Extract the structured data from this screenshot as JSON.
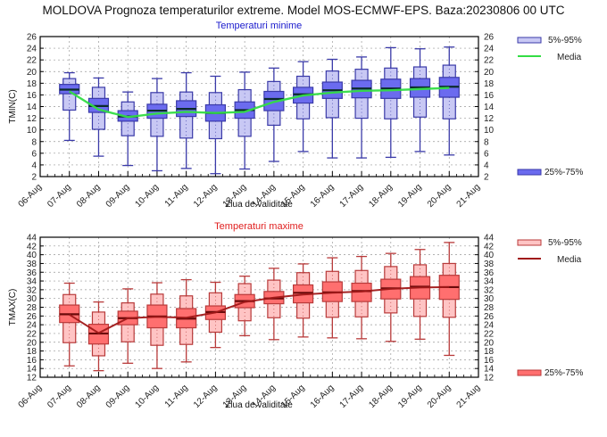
{
  "page": {
    "title": "MOLDOVA  Prognoza temperaturilor extreme.  Model MOS-ECMWF-EPS. Baza:20230806 00 UTC"
  },
  "chart_data": [
    {
      "type": "box",
      "title": "Temperaturi minime",
      "xlabel": "Ziua de validitate",
      "ylabel": "TMIN(C)",
      "ylim": [
        2,
        26
      ],
      "yticks": [
        2,
        4,
        6,
        8,
        10,
        12,
        14,
        16,
        18,
        20,
        22,
        24,
        26
      ],
      "x_tick_labels": [
        "06-Aug",
        "07-Aug",
        "08-Aug",
        "09-Aug",
        "10-Aug",
        "11-Aug",
        "12-Aug",
        "13-Aug",
        "14-Aug",
        "15-Aug",
        "16-Aug",
        "17-Aug",
        "18-Aug",
        "19-Aug",
        "20-Aug",
        "21-Aug"
      ],
      "grid": true,
      "legend_position": "right",
      "colors": {
        "outer_fill": "#c8c8f4",
        "inner_fill": "#6b6bef",
        "edge": "#3a3aa8",
        "median": "#0b2b2b",
        "mean_line": "#33dd44",
        "title": "#1a1acc"
      },
      "legend": [
        {
          "label": "5%-95%",
          "kind": "outer-box"
        },
        {
          "label": "Media",
          "kind": "mean-line"
        },
        {
          "label": "25%-75%",
          "kind": "inner-box"
        }
      ],
      "categories": [
        "07-Aug",
        "08-Aug",
        "09-Aug",
        "10-Aug",
        "11-Aug",
        "12-Aug",
        "13-Aug",
        "14-Aug",
        "15-Aug",
        "16-Aug",
        "17-Aug",
        "18-Aug",
        "19-Aug",
        "20-Aug"
      ],
      "boxes": [
        {
          "min": 8.2,
          "p5": 13.4,
          "p25": 16.2,
          "median": 16.9,
          "p75": 17.8,
          "p95": 18.8,
          "max": 19.8
        },
        {
          "min": 5.5,
          "p5": 10.1,
          "p25": 13.0,
          "median": 14.1,
          "p75": 15.4,
          "p95": 17.3,
          "max": 18.9
        },
        {
          "min": 3.9,
          "p5": 9.0,
          "p25": 11.5,
          "median": 12.3,
          "p75": 13.3,
          "p95": 14.8,
          "max": 16.5
        },
        {
          "min": 3.0,
          "p5": 8.9,
          "p25": 12.0,
          "median": 13.3,
          "p75": 14.4,
          "p95": 16.4,
          "max": 18.8
        },
        {
          "min": 3.4,
          "p5": 8.6,
          "p25": 12.3,
          "median": 13.6,
          "p75": 15.0,
          "p95": 16.5,
          "max": 19.8
        },
        {
          "min": 2.5,
          "p5": 8.5,
          "p25": 11.5,
          "median": 12.9,
          "p75": 14.3,
          "p95": 16.4,
          "max": 19.2
        },
        {
          "min": 3.3,
          "p5": 8.9,
          "p25": 12.0,
          "median": 13.4,
          "p75": 14.8,
          "p95": 16.9,
          "max": 19.9
        },
        {
          "min": 4.6,
          "p5": 10.8,
          "p25": 13.3,
          "median": 15.3,
          "p75": 16.6,
          "p95": 18.3,
          "max": 20.6
        },
        {
          "min": 6.3,
          "p5": 11.9,
          "p25": 14.6,
          "median": 16.1,
          "p75": 17.3,
          "p95": 19.2,
          "max": 21.7
        },
        {
          "min": 5.2,
          "p5": 12.1,
          "p25": 15.4,
          "median": 16.8,
          "p75": 18.2,
          "p95": 20.1,
          "max": 22.1
        },
        {
          "min": 5.2,
          "p5": 12.0,
          "p25": 15.5,
          "median": 17.1,
          "p75": 18.5,
          "p95": 20.4,
          "max": 22.5
        },
        {
          "min": 5.3,
          "p5": 11.9,
          "p25": 15.4,
          "median": 17.1,
          "p75": 18.7,
          "p95": 20.6,
          "max": 24.1
        },
        {
          "min": 6.3,
          "p5": 12.2,
          "p25": 15.6,
          "median": 17.3,
          "p75": 18.8,
          "p95": 20.8,
          "max": 23.9
        },
        {
          "min": 5.7,
          "p5": 11.9,
          "p25": 15.6,
          "median": 17.4,
          "p75": 19.0,
          "p95": 21.1,
          "max": 24.2
        }
      ],
      "mean": [
        16.6,
        13.5,
        12.2,
        12.8,
        13.1,
        12.9,
        13.1,
        14.8,
        15.9,
        16.4,
        16.7,
        16.8,
        17.0,
        17.2
      ]
    },
    {
      "type": "box",
      "title": "Temperaturi maxime",
      "xlabel": "Ziua de validitate",
      "ylabel": "TMAX(C)",
      "ylim": [
        12,
        44
      ],
      "yticks": [
        12,
        14,
        16,
        18,
        20,
        22,
        24,
        26,
        28,
        30,
        32,
        34,
        36,
        38,
        40,
        42,
        44
      ],
      "x_tick_labels": [
        "06-Aug",
        "07-Aug",
        "08-Aug",
        "09-Aug",
        "10-Aug",
        "11-Aug",
        "12-Aug",
        "13-Aug",
        "14-Aug",
        "15-Aug",
        "16-Aug",
        "17-Aug",
        "18-Aug",
        "19-Aug",
        "20-Aug",
        "21-Aug"
      ],
      "grid": true,
      "legend_position": "right",
      "colors": {
        "outer_fill": "#ffc4c4",
        "inner_fill": "#ff6f6f",
        "edge": "#b83a3a",
        "median": "#6a0a0a",
        "mean_line": "#a01818",
        "title": "#e02020"
      },
      "legend": [
        {
          "label": "5%-95%",
          "kind": "outer-box"
        },
        {
          "label": "Media",
          "kind": "mean-line"
        },
        {
          "label": "25%-75%",
          "kind": "inner-box"
        }
      ],
      "categories": [
        "07-Aug",
        "08-Aug",
        "09-Aug",
        "10-Aug",
        "11-Aug",
        "12-Aug",
        "13-Aug",
        "14-Aug",
        "15-Aug",
        "16-Aug",
        "17-Aug",
        "18-Aug",
        "19-Aug",
        "20-Aug"
      ],
      "boxes": [
        {
          "min": 14.6,
          "p5": 19.9,
          "p25": 24.5,
          "median": 26.4,
          "p75": 28.5,
          "p95": 30.9,
          "max": 33.5
        },
        {
          "min": 13.5,
          "p5": 16.9,
          "p25": 19.6,
          "median": 22.0,
          "p75": 24.1,
          "p95": 26.9,
          "max": 29.2
        },
        {
          "min": 15.2,
          "p5": 20.1,
          "p25": 24.0,
          "median": 25.5,
          "p75": 27.1,
          "p95": 29.0,
          "max": 32.2
        },
        {
          "min": 14.0,
          "p5": 19.3,
          "p25": 23.3,
          "median": 25.9,
          "p75": 28.5,
          "p95": 31.0,
          "max": 33.6
        },
        {
          "min": 15.5,
          "p5": 19.5,
          "p25": 23.3,
          "median": 25.4,
          "p75": 27.7,
          "p95": 30.6,
          "max": 34.3
        },
        {
          "min": 18.8,
          "p5": 22.3,
          "p25": 25.2,
          "median": 26.9,
          "p75": 28.3,
          "p95": 31.3,
          "max": 33.7
        },
        {
          "min": 21.5,
          "p5": 24.9,
          "p25": 27.9,
          "median": 29.4,
          "p75": 30.9,
          "p95": 33.4,
          "max": 35.1
        },
        {
          "min": 20.6,
          "p5": 25.6,
          "p25": 28.8,
          "median": 30.0,
          "p75": 31.6,
          "p95": 34.2,
          "max": 36.9
        },
        {
          "min": 21.2,
          "p5": 25.5,
          "p25": 29.0,
          "median": 31.3,
          "p75": 33.1,
          "p95": 35.9,
          "max": 37.9
        },
        {
          "min": 21.0,
          "p5": 25.7,
          "p25": 29.3,
          "median": 31.4,
          "p75": 33.8,
          "p95": 36.2,
          "max": 39.3
        },
        {
          "min": 20.8,
          "p5": 25.8,
          "p25": 29.3,
          "median": 31.7,
          "p75": 33.5,
          "p95": 36.4,
          "max": 39.6
        },
        {
          "min": 20.2,
          "p5": 26.7,
          "p25": 29.9,
          "median": 32.3,
          "p75": 34.4,
          "p95": 37.3,
          "max": 40.3
        },
        {
          "min": 20.7,
          "p5": 25.9,
          "p25": 29.9,
          "median": 32.7,
          "p75": 35.0,
          "p95": 37.7,
          "max": 41.2
        },
        {
          "min": 17.0,
          "p5": 25.7,
          "p25": 29.8,
          "median": 32.6,
          "p75": 35.3,
          "p95": 38.0,
          "max": 42.8
        }
      ],
      "mean": [
        26.3,
        22.1,
        25.5,
        25.8,
        25.6,
        26.8,
        29.2,
        30.2,
        30.9,
        31.3,
        31.6,
        32.2,
        32.5,
        32.6
      ]
    }
  ]
}
